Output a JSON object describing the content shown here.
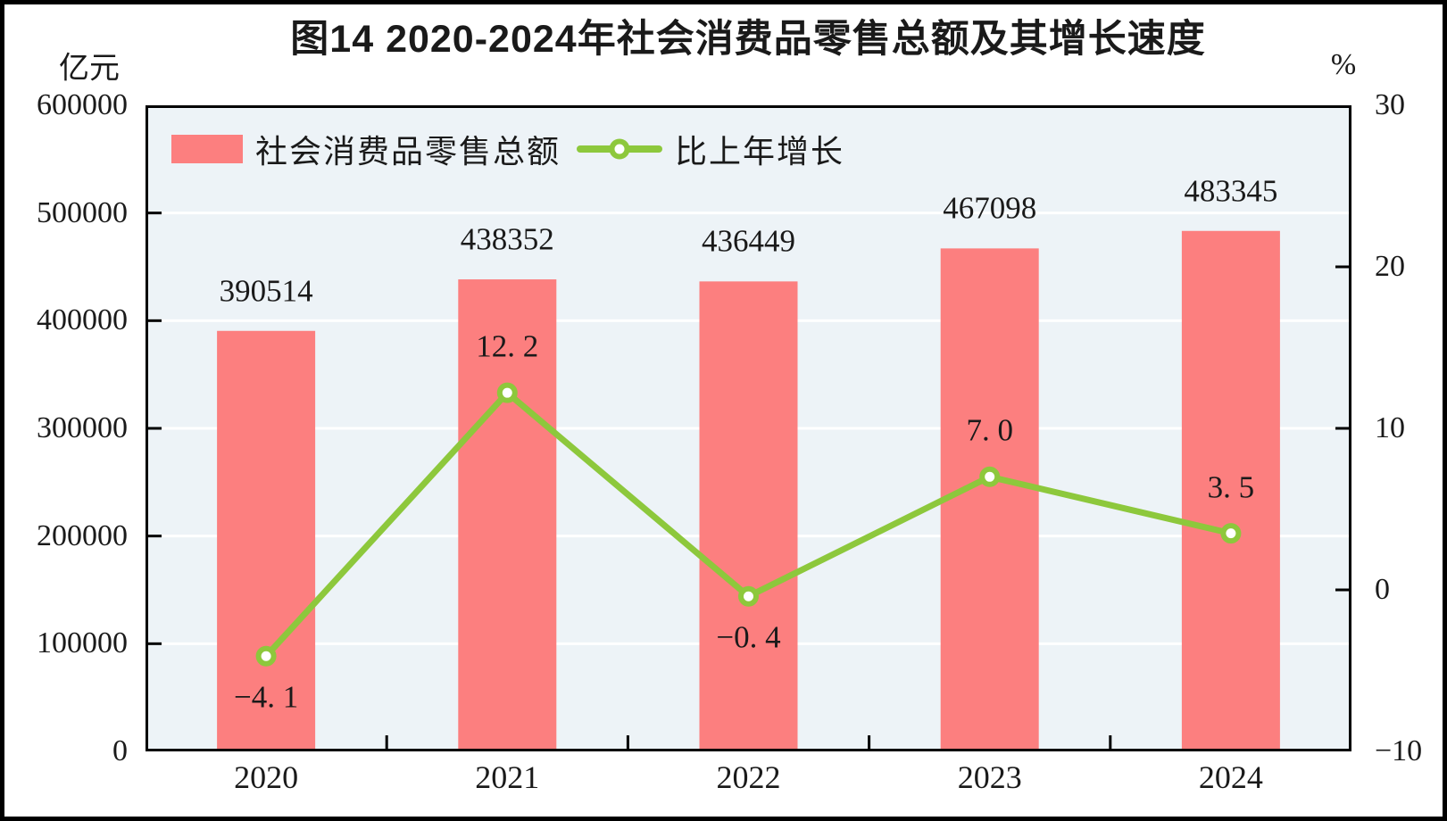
{
  "figure": {
    "title": "图14  2020-2024年社会消费品零售总额及其增长速度",
    "left_axis_unit": "亿元",
    "right_axis_unit": "%"
  },
  "legend": {
    "bar_label": "社会消费品零售总额",
    "line_label": "比上年增长"
  },
  "colors": {
    "bar": "#FC7F7F",
    "line": "#8DC83C",
    "marker_fill": "#FFFFFF",
    "plot_bg": "#EDF3F7",
    "grid": "#FFFFFF",
    "axis": "#000000",
    "text": "#1A1A1A"
  },
  "chart_data": {
    "type": "combo-bar-line",
    "title": "图14  2020-2024年社会消费品零售总额及其增长速度",
    "categories": [
      "2020",
      "2021",
      "2022",
      "2023",
      "2024"
    ],
    "series": [
      {
        "name": "社会消费品零售总额",
        "type": "bar",
        "axis": "left",
        "unit": "亿元",
        "values": [
          390514,
          438352,
          436449,
          467098,
          483345
        ],
        "labels": [
          "390514",
          "438352",
          "436449",
          "467098",
          "483345"
        ]
      },
      {
        "name": "比上年增长",
        "type": "line",
        "axis": "right",
        "unit": "%",
        "values": [
          -4.1,
          12.2,
          -0.4,
          7.0,
          3.5
        ],
        "labels": [
          "−4. 1",
          "12. 2",
          "−0. 4",
          "7. 0",
          "3. 5"
        ]
      }
    ],
    "left_axis": {
      "label": "亿元",
      "min": 0,
      "max": 600000,
      "step": 100000,
      "tick_labels": [
        "600000",
        "500000",
        "400000",
        "300000",
        "200000",
        "100000",
        "0"
      ]
    },
    "right_axis": {
      "label": "%",
      "min": -10,
      "max": 30,
      "step": 10,
      "tick_labels": [
        "30",
        "20",
        "10",
        "0",
        "−10"
      ]
    },
    "grid": true,
    "legend_position": "top-left-inside"
  }
}
